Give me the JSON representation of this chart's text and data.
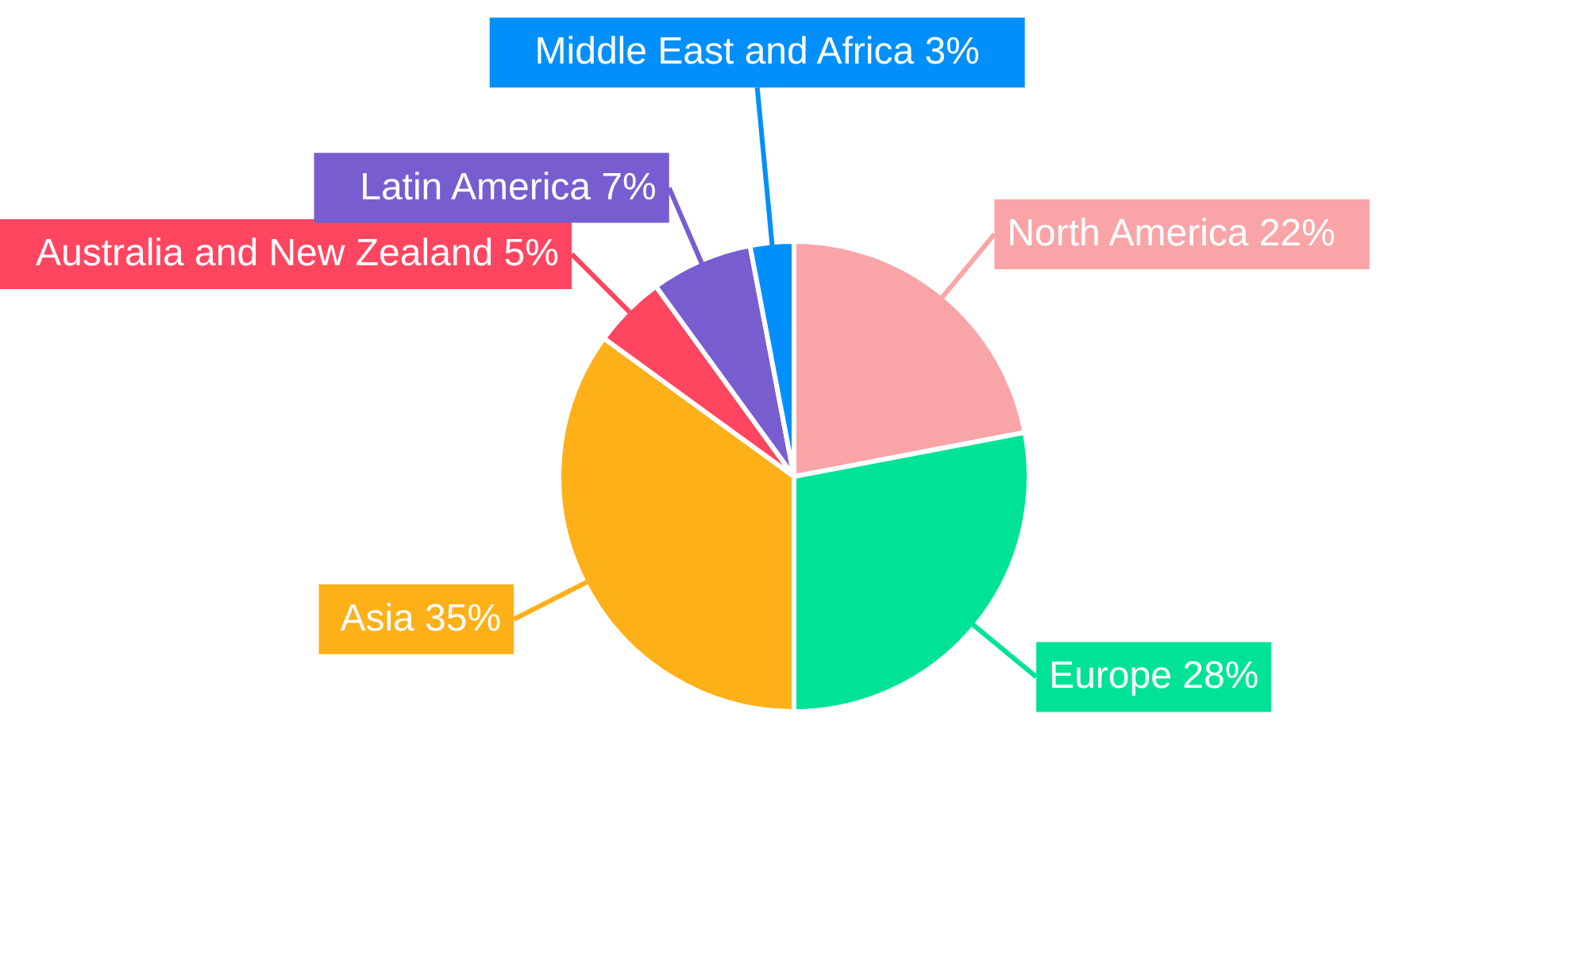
{
  "chart_data": {
    "type": "pie",
    "categories": [
      "North America",
      "Europe",
      "Asia",
      "Australia and New Zealand",
      "Latin America",
      "Middle East and Africa"
    ],
    "values": [
      22,
      28,
      35,
      5,
      7,
      3
    ],
    "value_labels": [
      "22%",
      "28%",
      "35%",
      "5%",
      "7%",
      "3%"
    ],
    "colors": [
      "#f9a5a8",
      "#00e396",
      "#feb019",
      "#ff4560",
      "#775dd0",
      "#008ffb"
    ]
  }
}
